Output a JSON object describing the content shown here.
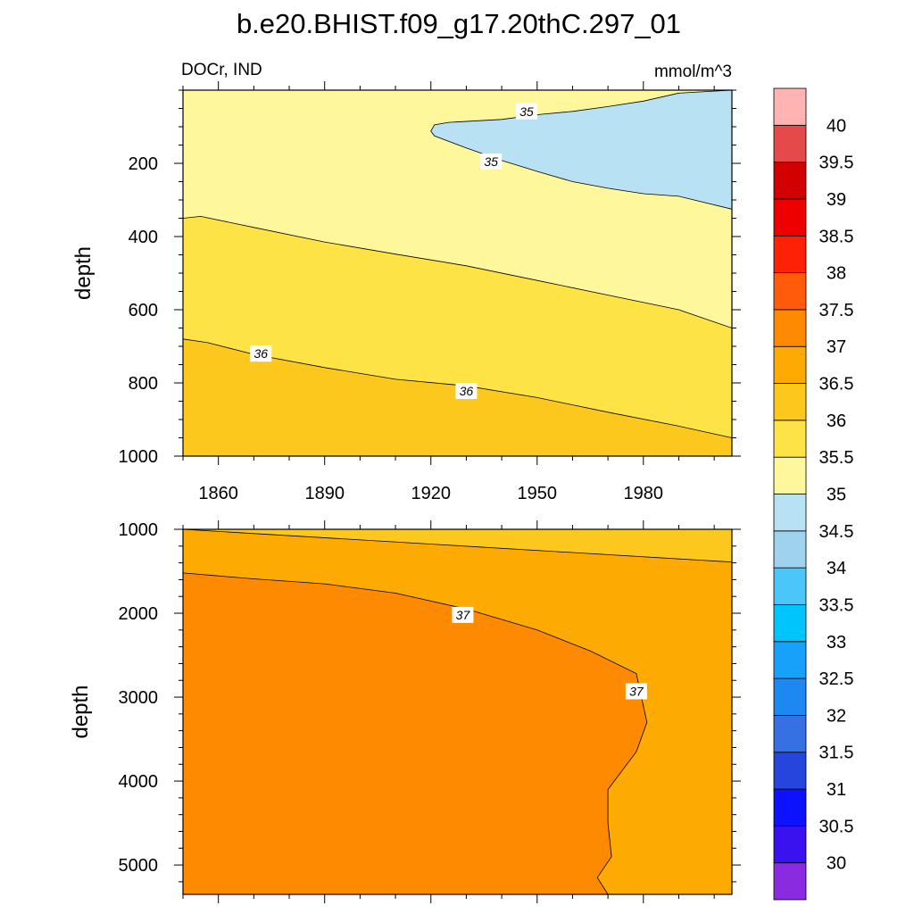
{
  "page": {
    "title": "b.e20.BHIST.f09_g17.20thC.297_01",
    "variable_label": "DOCr, IND",
    "units_label": "mmol/m^3"
  },
  "chart_data": [
    {
      "type": "contour",
      "panel": "upper ocean",
      "ylabel": "depth",
      "xlim": [
        1850,
        2005
      ],
      "ylim": [
        1000,
        0
      ],
      "xticks": [
        1860,
        1890,
        1920,
        1950,
        1980
      ],
      "xtick_labels": [
        "1860",
        "1890",
        "1920",
        "1950",
        "1980"
      ],
      "yticks": [
        200,
        400,
        600,
        800,
        1000
      ],
      "ytick_labels": [
        "200",
        "400",
        "600",
        "800",
        "1000"
      ],
      "regions": [
        {
          "range": "34.5-35",
          "color": "#b9e1f4",
          "points": [
            [
              1920,
              112
            ],
            [
              1921,
              95
            ],
            [
              1925,
              88
            ],
            [
              1940,
              80
            ],
            [
              1950,
              67
            ],
            [
              1960,
              58
            ],
            [
              1970,
              45
            ],
            [
              1980,
              30
            ],
            [
              1990,
              8
            ],
            [
              2005,
              0
            ],
            [
              2005,
              325
            ],
            [
              1990,
              290
            ],
            [
              1980,
              283
            ],
            [
              1970,
              268
            ],
            [
              1960,
              250
            ],
            [
              1950,
              222
            ],
            [
              1940,
              192
            ],
            [
              1930,
              158
            ],
            [
              1921,
              125
            ]
          ]
        },
        {
          "range": "35.5-36",
          "color": "#fee347",
          "points": [
            [
              1850,
              350
            ],
            [
              1855,
              345
            ],
            [
              1870,
              375
            ],
            [
              1890,
              415
            ],
            [
              1910,
              448
            ],
            [
              1930,
              480
            ],
            [
              1950,
              520
            ],
            [
              1970,
              560
            ],
            [
              1990,
              600
            ],
            [
              2005,
              650
            ],
            [
              2005,
              950
            ],
            [
              1990,
              918
            ],
            [
              1970,
              880
            ],
            [
              1950,
              840
            ],
            [
              1930,
              808
            ],
            [
              1910,
              790
            ],
            [
              1890,
              758
            ],
            [
              1870,
              722
            ],
            [
              1857,
              690
            ],
            [
              1850,
              680
            ]
          ]
        },
        {
          "range": "36-36.5",
          "color": "#fdc81e",
          "points": [
            [
              1850,
              680
            ],
            [
              1857,
              690
            ],
            [
              1870,
              722
            ],
            [
              1890,
              758
            ],
            [
              1910,
              790
            ],
            [
              1930,
              808
            ],
            [
              1950,
              840
            ],
            [
              1970,
              880
            ],
            [
              1990,
              918
            ],
            [
              2005,
              950
            ],
            [
              2005,
              1000
            ],
            [
              1850,
              1000
            ]
          ]
        }
      ],
      "contour_lines": [
        {
          "level": 35,
          "points": [
            [
              1920,
              112
            ],
            [
              1921,
              95
            ],
            [
              1925,
              88
            ],
            [
              1940,
              80
            ],
            [
              1950,
              67
            ],
            [
              1960,
              58
            ],
            [
              1970,
              45
            ],
            [
              1980,
              30
            ],
            [
              1990,
              8
            ],
            [
              2005,
              0
            ]
          ]
        },
        {
          "level": 35,
          "points": [
            [
              1920,
              112
            ],
            [
              1921,
              125
            ],
            [
              1930,
              158
            ],
            [
              1940,
              192
            ],
            [
              1950,
              222
            ],
            [
              1960,
              250
            ],
            [
              1970,
              268
            ],
            [
              1980,
              283
            ],
            [
              1990,
              290
            ],
            [
              2005,
              325
            ]
          ]
        },
        {
          "level": 35.5,
          "points": [
            [
              1850,
              350
            ],
            [
              1855,
              345
            ],
            [
              1870,
              375
            ],
            [
              1890,
              415
            ],
            [
              1910,
              448
            ],
            [
              1930,
              480
            ],
            [
              1950,
              520
            ],
            [
              1970,
              560
            ],
            [
              1990,
              600
            ],
            [
              2005,
              650
            ]
          ]
        },
        {
          "level": 36,
          "points": [
            [
              1850,
              680
            ],
            [
              1857,
              690
            ],
            [
              1870,
              722
            ],
            [
              1890,
              758
            ],
            [
              1910,
              790
            ],
            [
              1930,
              808
            ],
            [
              1950,
              840
            ],
            [
              1970,
              880
            ],
            [
              1990,
              918
            ],
            [
              2005,
              950
            ]
          ]
        }
      ],
      "contour_labels": [
        {
          "text": "35",
          "x": 1947,
          "y": 58
        },
        {
          "text": "35",
          "x": 1937,
          "y": 195
        },
        {
          "text": "36",
          "x": 1872,
          "y": 720
        },
        {
          "text": "36",
          "x": 1930,
          "y": 822
        }
      ]
    },
    {
      "type": "contour",
      "panel": "deep ocean",
      "ylabel": "depth",
      "xlim": [
        1850,
        2005
      ],
      "ylim": [
        5350,
        1000
      ],
      "xticks": [
        1860,
        1890,
        1920,
        1950,
        1980
      ],
      "yticks": [
        1000,
        2000,
        3000,
        4000,
        5000
      ],
      "ytick_labels": [
        "1000",
        "2000",
        "3000",
        "4000",
        "5000"
      ],
      "regions": [
        {
          "range": "36-36.5",
          "color": "#fdc81e",
          "points": [
            [
              1850,
              1000
            ],
            [
              2005,
              1390
            ],
            [
              2005,
              1000
            ]
          ]
        },
        {
          "range": "37-37.5",
          "color": "#fe8a02",
          "points": [
            [
              1850,
              1520
            ],
            [
              1870,
              1590
            ],
            [
              1890,
              1650
            ],
            [
              1910,
              1760
            ],
            [
              1930,
              1950
            ],
            [
              1950,
              2200
            ],
            [
              1965,
              2450
            ],
            [
              1978,
              2720
            ],
            [
              1981,
              3300
            ],
            [
              1978,
              3650
            ],
            [
              1970,
              4100
            ],
            [
              1970,
              4500
            ],
            [
              1971,
              4900
            ],
            [
              1967,
              5150
            ],
            [
              1970,
              5350
            ],
            [
              1850,
              5350
            ]
          ]
        }
      ],
      "contour_lines": [
        {
          "level": 36.5,
          "points": [
            [
              1850,
              1000
            ],
            [
              2005,
              1390
            ]
          ]
        },
        {
          "level": 37,
          "points": [
            [
              1850,
              1520
            ],
            [
              1870,
              1590
            ],
            [
              1890,
              1650
            ],
            [
              1910,
              1760
            ],
            [
              1930,
              1950
            ],
            [
              1950,
              2200
            ],
            [
              1965,
              2450
            ],
            [
              1978,
              2720
            ],
            [
              1981,
              3300
            ],
            [
              1978,
              3650
            ],
            [
              1970,
              4100
            ],
            [
              1970,
              4500
            ],
            [
              1971,
              4900
            ],
            [
              1967,
              5150
            ],
            [
              1970,
              5350
            ]
          ]
        }
      ],
      "contour_labels": [
        {
          "text": "37",
          "x": 1929,
          "y": 2020
        },
        {
          "text": "37",
          "x": 1978,
          "y": 2930
        }
      ]
    }
  ],
  "colorbar": {
    "boundaries": [
      "30",
      "30.5",
      "31",
      "31.5",
      "32",
      "32.5",
      "33",
      "33.5",
      "34",
      "34.5",
      "35",
      "35.5",
      "36",
      "36.5",
      "37",
      "37.5",
      "38",
      "38.5",
      "39",
      "39.5",
      "40"
    ],
    "colors": [
      "#8a2be2",
      "#3a12f0",
      "#0c12fb",
      "#2545dc",
      "#3571e3",
      "#1e88f2",
      "#17a1fb",
      "#00c4fc",
      "#4cc5f8",
      "#9ed2ee",
      "#b9e1f4",
      "#fff79c",
      "#fee347",
      "#fdc81e",
      "#fdaa03",
      "#fe8a02",
      "#ff5b0b",
      "#ff2105",
      "#ef0000",
      "#d20000",
      "#e54949",
      "#ffb3b3"
    ]
  }
}
